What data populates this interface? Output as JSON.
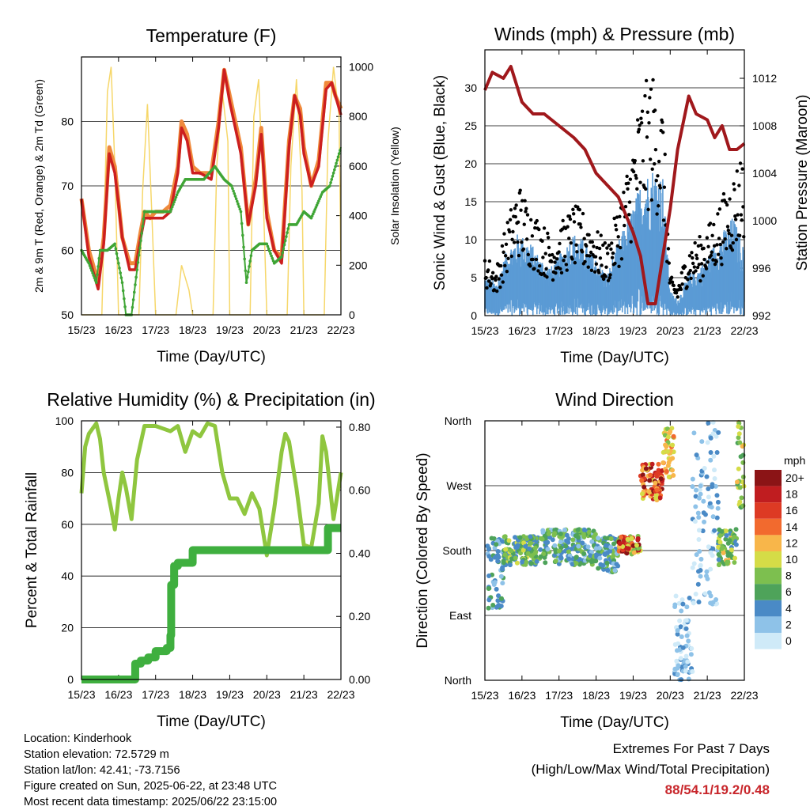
{
  "x_ticks": [
    "15/23",
    "16/23",
    "17/23",
    "18/23",
    "19/23",
    "20/23",
    "21/23",
    "22/23"
  ],
  "x_title": "Time (Day/UTC)",
  "colors": {
    "temp2m": "#cc1f1f",
    "temp9m": "#f08a3c",
    "dewpoint": "#3fa535",
    "solar": "#f5d35a",
    "wind": "#5b9bd5",
    "gust": "#000000",
    "pressure": "#a0181c",
    "rh": "#8fc63f",
    "precip": "#3faf3f",
    "extremes": "#c8262b"
  },
  "chart_data": [
    {
      "id": "temperature",
      "type": "line",
      "title": "Temperature (F)",
      "ylabel_left": "2m & 9m T (Red, Orange) & 2m Td (Green)",
      "ylabel_right": "Solar Insolation (Yellow)",
      "ylim": [
        50,
        90
      ],
      "yticks": [
        50,
        60,
        70,
        80
      ],
      "y2lim": [
        0,
        1040
      ],
      "y2ticks": [
        0,
        200,
        400,
        600,
        800,
        1000
      ],
      "xlim": [
        0,
        7
      ],
      "grid": true,
      "series": [
        {
          "key": "solar",
          "axis": "right",
          "x": [
            0,
            0.55,
            0.7,
            0.8,
            0.9,
            1.0,
            1.55,
            1.65,
            1.78,
            1.9,
            2.0,
            2.55,
            2.7,
            2.8,
            2.9,
            3.0,
            3.55,
            3.65,
            3.8,
            3.95,
            4.0,
            4.55,
            4.65,
            4.78,
            4.9,
            5.0,
            5.55,
            5.65,
            5.8,
            5.95,
            6.0,
            6.55,
            6.65,
            6.8,
            6.95,
            7.0
          ],
          "y": [
            0,
            0,
            900,
            1000,
            600,
            0,
            0,
            500,
            850,
            400,
            0,
            0,
            200,
            150,
            100,
            0,
            0,
            600,
            900,
            700,
            0,
            0,
            800,
            950,
            500,
            0,
            0,
            600,
            950,
            500,
            0,
            0,
            700,
            1000,
            800,
            200
          ]
        },
        {
          "key": "temp9m",
          "axis": "left",
          "x": [
            0,
            0.2,
            0.45,
            0.6,
            0.75,
            0.9,
            1.1,
            1.3,
            1.45,
            1.6,
            1.7,
            1.85,
            2.0,
            2.2,
            2.4,
            2.6,
            2.7,
            2.85,
            3.0,
            3.2,
            3.5,
            3.7,
            3.85,
            4.0,
            4.3,
            4.5,
            4.7,
            4.85,
            5.0,
            5.2,
            5.4,
            5.6,
            5.75,
            5.9,
            6.0,
            6.2,
            6.4,
            6.6,
            6.75,
            6.85,
            7.0
          ],
          "y": [
            68,
            60,
            55,
            62,
            76,
            73,
            62,
            58,
            58,
            63,
            66,
            65,
            66,
            66,
            67,
            73,
            80,
            78,
            73,
            72,
            72,
            80,
            88,
            84,
            76,
            64,
            71,
            79,
            66,
            60,
            59,
            77,
            84,
            82,
            76,
            70,
            74,
            86,
            86,
            84,
            82
          ]
        },
        {
          "key": "temp2m",
          "axis": "left",
          "x": [
            0,
            0.2,
            0.45,
            0.6,
            0.75,
            0.9,
            1.1,
            1.3,
            1.45,
            1.6,
            1.7,
            1.85,
            2.0,
            2.2,
            2.4,
            2.6,
            2.7,
            2.85,
            3.0,
            3.2,
            3.5,
            3.7,
            3.85,
            4.0,
            4.3,
            4.5,
            4.7,
            4.85,
            5.0,
            5.2,
            5.4,
            5.6,
            5.75,
            5.9,
            6.0,
            6.2,
            6.4,
            6.6,
            6.75,
            6.85,
            7.0
          ],
          "y": [
            68,
            59,
            54,
            61,
            75,
            72,
            62,
            57,
            57,
            62,
            65,
            65,
            65,
            65,
            66,
            72,
            79,
            77,
            72,
            72,
            71,
            79,
            88,
            83,
            75,
            64,
            70,
            78,
            65,
            60,
            58,
            76,
            84,
            81,
            75,
            70,
            73,
            85,
            86,
            84,
            81
          ]
        },
        {
          "key": "dewpoint",
          "axis": "left",
          "x": [
            0,
            0.2,
            0.4,
            0.5,
            0.7,
            0.9,
            1.1,
            1.2,
            1.35,
            1.5,
            1.7,
            2.0,
            2.4,
            2.6,
            2.8,
            3.0,
            3.3,
            3.6,
            3.85,
            4.05,
            4.3,
            4.45,
            4.6,
            4.8,
            5.0,
            5.2,
            5.4,
            5.6,
            5.8,
            6.0,
            6.2,
            6.5,
            6.7,
            6.85,
            7.0
          ],
          "y": [
            60,
            58,
            55,
            60,
            60,
            61,
            55,
            50,
            50,
            57,
            66,
            66,
            66,
            69,
            71,
            71,
            71,
            73,
            71,
            70,
            66,
            55,
            60,
            61,
            61,
            58,
            59,
            64,
            64,
            66,
            65,
            69,
            70,
            73,
            76
          ]
        }
      ]
    },
    {
      "id": "winds",
      "type": "scatter",
      "title": "Winds (mph) & Pressure (mb)",
      "ylabel_left": "Sonic Wind & Gust (Blue, Black)",
      "ylabel_right": "Station Pressure (Maroon)",
      "ylim": [
        0,
        35
      ],
      "yticks": [
        0,
        5,
        10,
        15,
        20,
        25,
        30
      ],
      "y2lim": [
        992,
        1014.4
      ],
      "y2ticks": [
        992,
        996,
        1000,
        1004,
        1008,
        1012
      ],
      "xlim": [
        0,
        7
      ],
      "grid": true,
      "wind_envelope": {
        "x": [
          0,
          0.3,
          0.6,
          0.9,
          1.2,
          1.5,
          1.8,
          2.1,
          2.4,
          2.7,
          3.0,
          3.3,
          3.6,
          3.9,
          4.2,
          4.5,
          4.8,
          5.0,
          5.2,
          5.5,
          5.8,
          6.1,
          6.4,
          6.7,
          7.0
        ],
        "y": [
          5,
          4,
          8,
          10,
          9,
          7,
          6,
          8,
          10,
          9,
          7,
          5,
          9,
          12,
          16,
          18,
          17,
          3,
          2,
          5,
          6,
          8,
          10,
          12,
          8
        ]
      },
      "gust_envelope": {
        "x": [
          0,
          0.3,
          0.6,
          0.9,
          1.2,
          1.5,
          1.8,
          2.1,
          2.4,
          2.7,
          3.0,
          3.3,
          3.6,
          3.9,
          4.2,
          4.5,
          4.8,
          5.0,
          5.2,
          5.5,
          5.8,
          6.1,
          6.4,
          6.7,
          7.0
        ],
        "y": [
          8,
          6,
          12,
          17,
          14,
          12,
          10,
          12,
          14,
          13,
          11,
          9,
          14,
          20,
          28,
          31,
          27,
          5,
          4,
          9,
          10,
          12,
          15,
          18,
          22
        ]
      },
      "pressure": {
        "x": [
          0,
          0.2,
          0.5,
          0.7,
          1.0,
          1.3,
          1.6,
          2.0,
          2.4,
          2.7,
          3.0,
          3.3,
          3.6,
          3.8,
          4.0,
          4.2,
          4.4,
          4.6,
          4.8,
          5.0,
          5.2,
          5.5,
          5.7,
          6.0,
          6.2,
          6.4,
          6.6,
          6.8,
          7.0
        ],
        "y": [
          1011,
          1012.5,
          1012,
          1013,
          1010,
          1009,
          1009,
          1008,
          1007,
          1006,
          1004,
          1003,
          1002,
          1000.5,
          999,
          997,
          993,
          993,
          997,
          1001,
          1006,
          1010.5,
          1009,
          1008.5,
          1007,
          1008,
          1006,
          1006,
          1006.5
        ]
      }
    },
    {
      "id": "humidity",
      "type": "line",
      "title": "Relative Humidity (%) & Precipitation (in)",
      "ylabel_left": "Percent & Total Rainfall",
      "ylim": [
        0,
        100
      ],
      "yticks": [
        0,
        20,
        40,
        60,
        80,
        100
      ],
      "y2lim": [
        0,
        0.82
      ],
      "y2ticks": [
        "0.00",
        "0.20",
        "0.40",
        "0.60",
        "0.80"
      ],
      "xlim": [
        0,
        7
      ],
      "grid": true,
      "series": [
        {
          "key": "rh",
          "axis": "left",
          "x": [
            0,
            0.1,
            0.2,
            0.4,
            0.5,
            0.6,
            0.8,
            0.9,
            1.0,
            1.1,
            1.2,
            1.35,
            1.5,
            1.7,
            2.0,
            2.2,
            2.4,
            2.6,
            2.8,
            3.0,
            3.2,
            3.4,
            3.6,
            3.8,
            4.0,
            4.2,
            4.4,
            4.6,
            4.8,
            5.0,
            5.2,
            5.4,
            5.5,
            5.6,
            5.8,
            6.0,
            6.2,
            6.4,
            6.5,
            6.6,
            6.8,
            7.0
          ],
          "y": [
            72,
            90,
            95,
            99,
            93,
            80,
            66,
            58,
            70,
            80,
            74,
            62,
            85,
            98,
            98,
            97,
            96,
            98,
            88,
            96,
            94,
            99,
            98,
            80,
            70,
            70,
            64,
            72,
            66,
            48,
            66,
            88,
            95,
            92,
            74,
            52,
            51,
            68,
            94,
            88,
            62,
            80
          ]
        },
        {
          "key": "precip",
          "axis": "right",
          "x": [
            0,
            1.4,
            1.45,
            1.6,
            1.8,
            2.0,
            2.3,
            2.4,
            2.42,
            2.5,
            2.6,
            2.8,
            3.0,
            6.6,
            6.65,
            7.0
          ],
          "y": [
            0,
            0,
            0.05,
            0.06,
            0.07,
            0.09,
            0.1,
            0.14,
            0.3,
            0.36,
            0.37,
            0.37,
            0.41,
            0.41,
            0.48,
            0.48
          ]
        }
      ]
    },
    {
      "id": "wind_direction",
      "type": "scatter",
      "title": "Wind Direction",
      "ylabel_left": "Direction (Colored By Speed)",
      "yticks": [
        "North",
        "East",
        "South",
        "West",
        "North"
      ],
      "ylim": [
        0,
        360
      ],
      "xlim": [
        0,
        7
      ],
      "grid": true,
      "colorbar": {
        "unit": "mph",
        "labels": [
          "0",
          "2",
          "4",
          "6",
          "8",
          "10",
          "12",
          "14",
          "16",
          "18",
          "20+"
        ],
        "colors": [
          "#cfeaf8",
          "#8ec2e8",
          "#4a8ac6",
          "#4ea35a",
          "#7dbf4f",
          "#d5dc47",
          "#f8b64a",
          "#f26a2e",
          "#dd3a24",
          "#c01d20",
          "#8b1416"
        ]
      },
      "clusters": [
        {
          "x": [
            0.05,
            0.5
          ],
          "y": [
            100,
            200
          ],
          "s": [
            2,
            6
          ]
        },
        {
          "x": [
            0.5,
            1.5
          ],
          "y": [
            160,
            200
          ],
          "s": [
            3,
            10
          ]
        },
        {
          "x": [
            1.5,
            3.0
          ],
          "y": [
            160,
            210
          ],
          "s": [
            2,
            9
          ]
        },
        {
          "x": [
            3.0,
            3.6
          ],
          "y": [
            150,
            200
          ],
          "s": [
            2,
            8
          ]
        },
        {
          "x": [
            3.6,
            4.2
          ],
          "y": [
            175,
            200
          ],
          "s": [
            6,
            20
          ]
        },
        {
          "x": [
            4.2,
            4.8
          ],
          "y": [
            250,
            300
          ],
          "s": [
            10,
            20
          ]
        },
        {
          "x": [
            4.8,
            5.1
          ],
          "y": [
            280,
            350
          ],
          "s": [
            8,
            14
          ]
        },
        {
          "x": [
            5.1,
            5.6
          ],
          "y": [
            0,
            120
          ],
          "s": [
            0,
            4
          ]
        },
        {
          "x": [
            5.6,
            6.3
          ],
          "y": [
            100,
            360
          ],
          "s": [
            0,
            4
          ]
        },
        {
          "x": [
            6.3,
            6.8
          ],
          "y": [
            160,
            210
          ],
          "s": [
            4,
            12
          ]
        },
        {
          "x": [
            6.8,
            7.0
          ],
          "y": [
            230,
            360
          ],
          "s": [
            6,
            12
          ]
        }
      ]
    }
  ],
  "info": {
    "location": "Location: Kinderhook",
    "elevation": "Station elevation: 72.5729 m",
    "latlon": "Station lat/lon: 42.41; -73.7156",
    "created": "Figure created on Sun, 2025-06-22, at 23:48 UTC",
    "recent": "Most recent data timestamp: 2025/06/22 23:15:00"
  },
  "extremes": {
    "title": "Extremes For Past 7 Days",
    "subtitle": "(High/Low/Max Wind/Total Precipitation)",
    "values": "88/54.1/19.2/0.48"
  }
}
